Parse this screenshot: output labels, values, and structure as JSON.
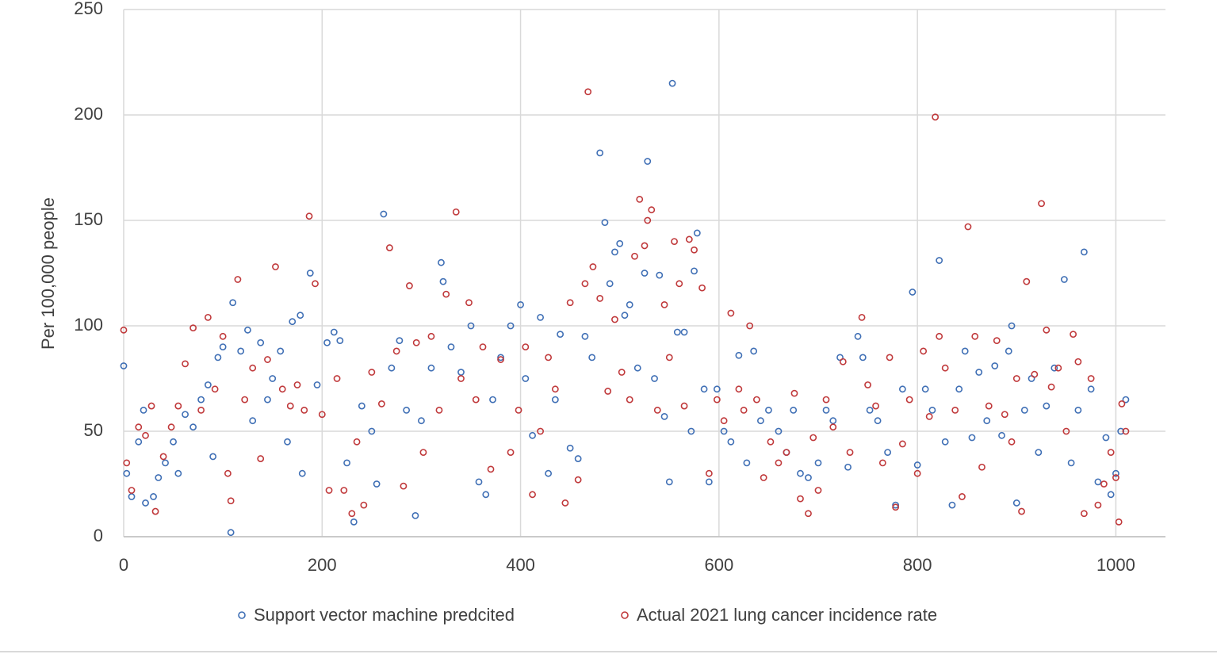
{
  "chart_data": {
    "type": "scatter",
    "y_label": "Per 100,000 people",
    "xlim": [
      0,
      1050
    ],
    "xticks": [
      0,
      200,
      400,
      600,
      800,
      1000
    ],
    "ylim": [
      0,
      250
    ],
    "yticks": [
      0,
      50,
      100,
      150,
      200,
      250
    ],
    "grid": true,
    "legend": "bottom",
    "series": [
      {
        "name": "Support vector machine predcited",
        "color": "#3f6fb5",
        "x": [
          0,
          3,
          8,
          15,
          20,
          22,
          30,
          35,
          42,
          50,
          55,
          62,
          70,
          78,
          85,
          90,
          95,
          100,
          108,
          110,
          118,
          125,
          130,
          138,
          145,
          150,
          158,
          165,
          170,
          178,
          180,
          188,
          195,
          205,
          212,
          218,
          225,
          232,
          240,
          250,
          255,
          262,
          270,
          278,
          285,
          294,
          300,
          310,
          320,
          322,
          330,
          340,
          350,
          358,
          365,
          372,
          380,
          390,
          400,
          405,
          412,
          420,
          428,
          435,
          440,
          450,
          458,
          465,
          472,
          480,
          485,
          490,
          495,
          500,
          505,
          510,
          518,
          525,
          528,
          535,
          540,
          545,
          550,
          553,
          558,
          565,
          572,
          575,
          578,
          585,
          590,
          598,
          605,
          612,
          620,
          628,
          635,
          642,
          650,
          660,
          668,
          675,
          682,
          690,
          700,
          708,
          715,
          722,
          730,
          740,
          745,
          752,
          760,
          770,
          778,
          785,
          795,
          800,
          808,
          815,
          822,
          828,
          835,
          842,
          848,
          855,
          862,
          870,
          878,
          885,
          892,
          895,
          900,
          908,
          915,
          922,
          930,
          938,
          948,
          955,
          962,
          968,
          975,
          982,
          990,
          995,
          1000,
          1005,
          1010
        ],
        "values": [
          81,
          30,
          19,
          45,
          60,
          16,
          19,
          28,
          35,
          45,
          30,
          58,
          52,
          65,
          72,
          38,
          85,
          90,
          2,
          111,
          88,
          98,
          55,
          92,
          65,
          75,
          88,
          45,
          102,
          105,
          30,
          125,
          72,
          92,
          97,
          93,
          35,
          7,
          62,
          50,
          25,
          153,
          80,
          93,
          60,
          10,
          55,
          80,
          130,
          121,
          90,
          78,
          100,
          26,
          20,
          65,
          85,
          100,
          110,
          75,
          48,
          104,
          30,
          65,
          96,
          42,
          37,
          95,
          85,
          182,
          149,
          120,
          135,
          139,
          105,
          110,
          80,
          125,
          178,
          75,
          124,
          57,
          26,
          215,
          97,
          97,
          50,
          126,
          144,
          70,
          26,
          70,
          50,
          45,
          86,
          35,
          88,
          55,
          60,
          50,
          40,
          60,
          30,
          28,
          35,
          60,
          55,
          85,
          33,
          95,
          85,
          60,
          55,
          40,
          15,
          70,
          116,
          34,
          70,
          60,
          131,
          45,
          15,
          70,
          88,
          47,
          78,
          55,
          81,
          48,
          88,
          100,
          16,
          60,
          75,
          40,
          62,
          80,
          122,
          35,
          60,
          135,
          70,
          26,
          47,
          20,
          30,
          50,
          65
        ]
      },
      {
        "name": "Actual 2021 lung cancer incidence rate",
        "color": "#c0393b",
        "x": [
          0,
          3,
          8,
          15,
          22,
          28,
          32,
          40,
          48,
          55,
          62,
          70,
          78,
          85,
          92,
          100,
          105,
          108,
          115,
          122,
          130,
          138,
          145,
          153,
          160,
          168,
          175,
          182,
          187,
          193,
          200,
          207,
          215,
          222,
          230,
          235,
          242,
          250,
          260,
          268,
          275,
          282,
          288,
          295,
          302,
          310,
          318,
          325,
          335,
          340,
          348,
          355,
          362,
          370,
          380,
          390,
          398,
          405,
          412,
          420,
          428,
          435,
          445,
          450,
          458,
          465,
          468,
          473,
          480,
          488,
          495,
          502,
          510,
          515,
          520,
          525,
          528,
          532,
          538,
          545,
          550,
          555,
          560,
          565,
          570,
          575,
          583,
          590,
          598,
          605,
          612,
          620,
          625,
          631,
          638,
          645,
          652,
          660,
          668,
          676,
          682,
          690,
          695,
          700,
          708,
          715,
          725,
          732,
          744,
          750,
          758,
          765,
          772,
          778,
          785,
          792,
          800,
          806,
          812,
          818,
          822,
          828,
          838,
          845,
          851,
          858,
          865,
          872,
          880,
          888,
          895,
          900,
          905,
          910,
          918,
          925,
          930,
          935,
          942,
          950,
          957,
          962,
          968,
          975,
          982,
          988,
          995,
          1000,
          1003,
          1006,
          1010
        ],
        "values": [
          98,
          35,
          22,
          52,
          48,
          62,
          12,
          38,
          52,
          62,
          82,
          99,
          60,
          104,
          70,
          95,
          30,
          17,
          122,
          65,
          80,
          37,
          84,
          128,
          70,
          62,
          72,
          60,
          152,
          120,
          58,
          22,
          75,
          22,
          11,
          45,
          15,
          78,
          63,
          137,
          88,
          24,
          119,
          92,
          40,
          95,
          60,
          115,
          154,
          75,
          111,
          65,
          90,
          32,
          84,
          40,
          60,
          90,
          20,
          50,
          85,
          70,
          16,
          111,
          27,
          120,
          211,
          128,
          113,
          69,
          103,
          78,
          65,
          133,
          160,
          138,
          150,
          155,
          60,
          110,
          85,
          140,
          120,
          62,
          141,
          136,
          118,
          30,
          65,
          55,
          106,
          70,
          60,
          100,
          65,
          28,
          45,
          35,
          40,
          68,
          18,
          11,
          47,
          22,
          65,
          52,
          83,
          40,
          104,
          72,
          62,
          35,
          85,
          14,
          44,
          65,
          30,
          88,
          57,
          199,
          95,
          80,
          60,
          19,
          147,
          95,
          33,
          62,
          93,
          58,
          45,
          75,
          12,
          121,
          77,
          158,
          98,
          71,
          80,
          50,
          96,
          83,
          11,
          75,
          15,
          25,
          40,
          28,
          7,
          63,
          50
        ]
      }
    ]
  }
}
